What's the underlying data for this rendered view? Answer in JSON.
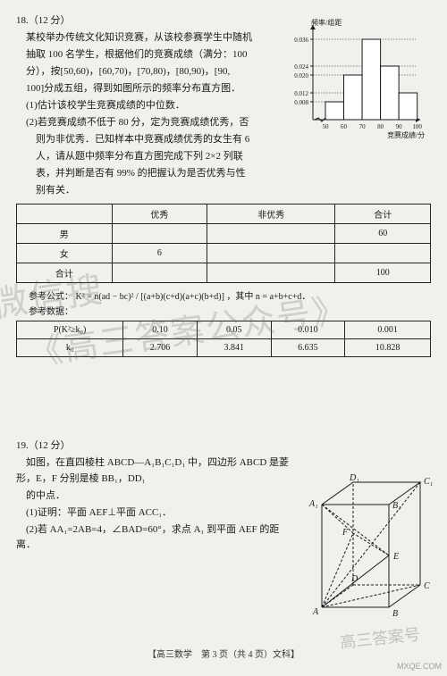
{
  "q18": {
    "header": "18.（12 分）",
    "p1": "某校举办传统文化知识竞赛，从该校参赛学生中随机",
    "p2": "抽取 100 名学生，根据他们的竞赛成绩（满分：100",
    "p3": "分），按[50,60)，[60,70)，[70,80)，[80,90)，[90,",
    "p4": "100]分成五组，得到如图所示的频率分布直方图．",
    "p5": "(1)估计该校学生竞赛成绩的中位数．",
    "p6": "(2)若竞赛成绩不低于 80 分，定为竞赛成绩优秀，否",
    "p7": "则为非优秀．已知样本中竞赛成绩优秀的女生有 6",
    "p8": "人，请从题中频率分布直方图完成下列 2×2 列联",
    "p9": "表，并判断是否有 99% 的把握认为是否优秀与性",
    "p10": "别有关．",
    "histogram": {
      "ylabel": "频率/组距",
      "xlabel": "竞赛成绩/分",
      "x_ticks": [
        "50",
        "60",
        "70",
        "80",
        "90",
        "100"
      ],
      "y_ticks": [
        "0.008",
        "0.012",
        "0.020",
        "0.024",
        "0.036"
      ],
      "bars": [
        0.008,
        0.02,
        0.036,
        0.024,
        0.012
      ],
      "bar_color": "#ffffff",
      "stroke": "#1a1a1a",
      "bg": "#f2f0ed"
    },
    "table1": {
      "cols": [
        "",
        "优秀",
        "非优秀",
        "合计"
      ],
      "rows": [
        [
          "男",
          "",
          "",
          "60"
        ],
        [
          "女",
          "6",
          "",
          ""
        ],
        [
          "合计",
          "",
          "",
          "100"
        ]
      ]
    },
    "formula_label": "参考公式：",
    "formula": "K² = n(ad − bc)² / [(a+b)(c+d)(a+c)(b+d)] ，其中 n = a+b+c+d．",
    "ref_label": "参考数据：",
    "table2": {
      "row0": [
        "P(K²≥k₀)",
        "0.10",
        "0.05",
        "0.010",
        "0.001"
      ],
      "row1": [
        "k₀",
        "2.706",
        "3.841",
        "6.635",
        "10.828"
      ]
    }
  },
  "watermark": {
    "line1": "微信搜",
    "line2": "《高三答案公众号》"
  },
  "q19": {
    "header": "19.（12 分）",
    "p1": "如图，在直四棱柱 ABCD—A₁B₁C₁D₁ 中，四边形 ABCD 是菱形，E，F 分别是棱 BB₁，DD₁",
    "p2": "的中点．",
    "p3": "(1)证明：平面 AEF⊥平面 ACC₁．",
    "p4": "(2)若 AA₁=2AB=4，∠BAD=60°，求点 A₁ 到平面 AEF 的距离．",
    "labels": {
      "A": "A",
      "B": "B",
      "C": "C",
      "D": "D",
      "A1": "A₁",
      "B1": "B₁",
      "C1": "C₁",
      "D1": "D₁",
      "E": "E",
      "F": "F"
    }
  },
  "footer": "【高三数学　第 3 页（共 4 页）文科】",
  "corner_wm": "高三答案号",
  "corner_site": "MXQE.COM"
}
